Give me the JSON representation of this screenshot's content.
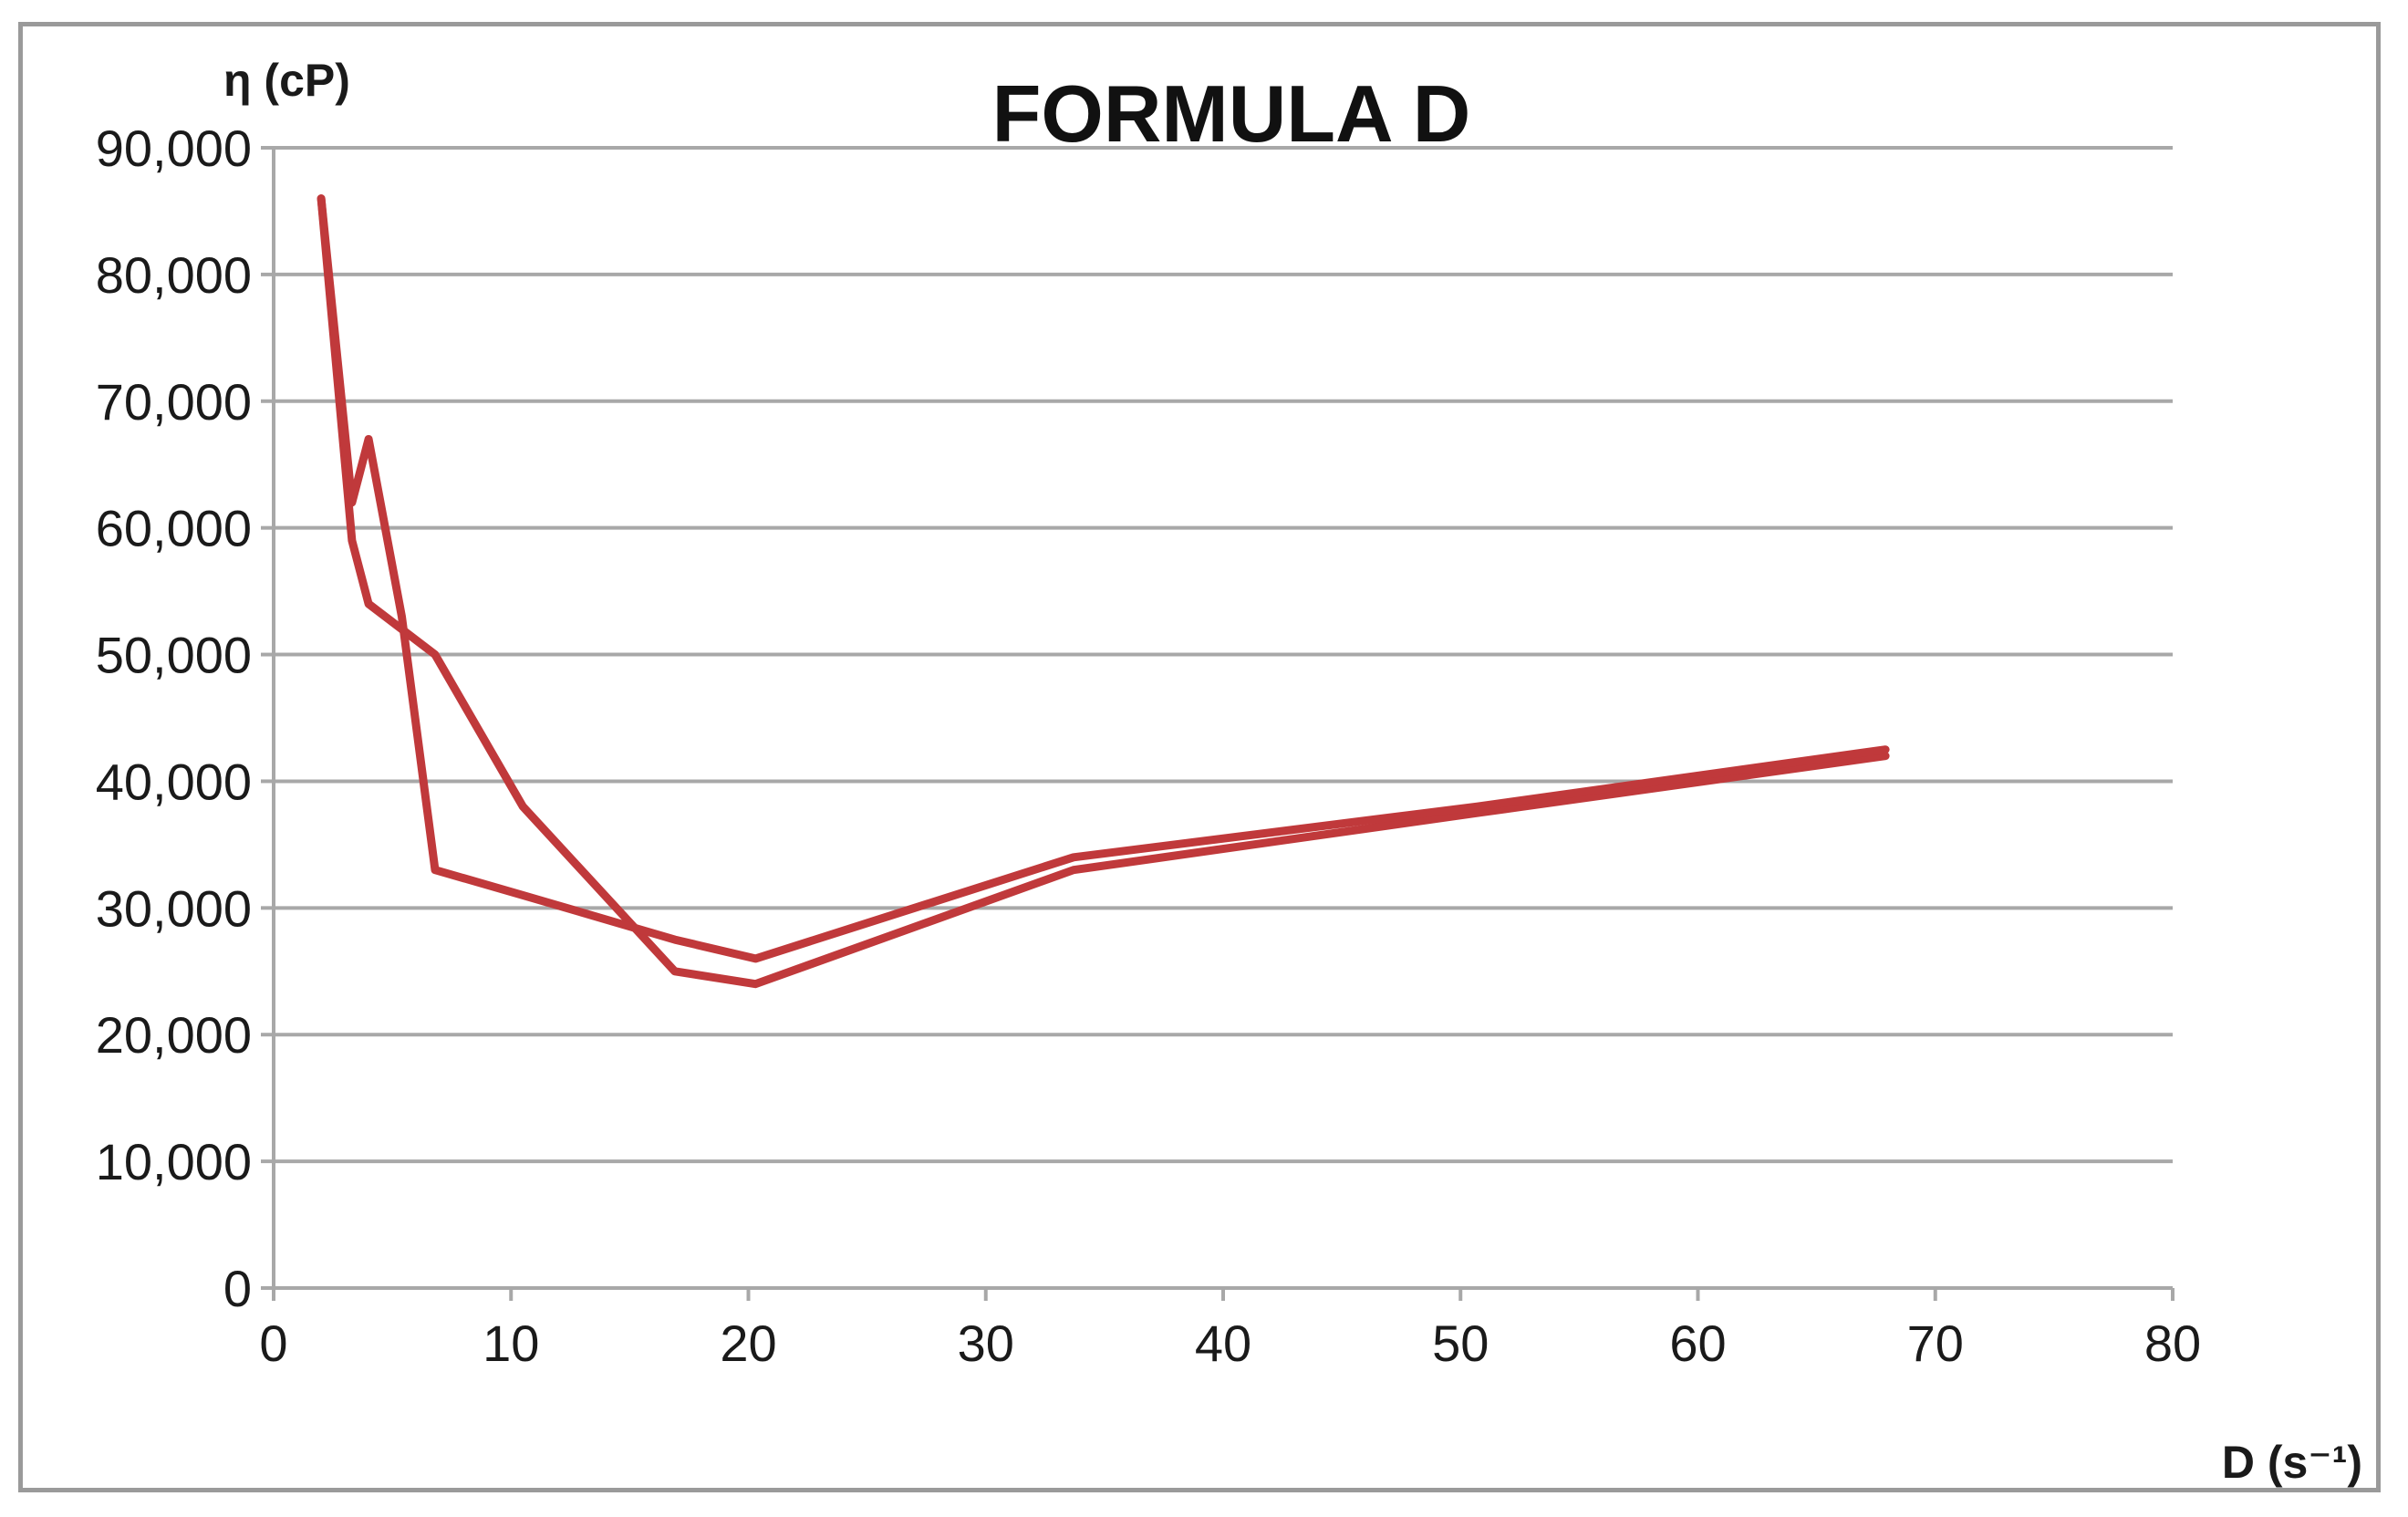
{
  "chart_data": {
    "type": "line",
    "title": "FORMULA D",
    "ylabel": "η (cP)",
    "xlabel": "D (s⁻¹)",
    "xlim": [
      0,
      80
    ],
    "ylim": [
      0,
      90000
    ],
    "x_ticks": [
      "0",
      "10",
      "20",
      "30",
      "40",
      "50",
      "60",
      "70",
      "80"
    ],
    "y_ticks": [
      "0",
      "10,000",
      "20,000",
      "30,000",
      "40,000",
      "50,000",
      "60,000",
      "70,000",
      "80,000",
      "90,000"
    ],
    "grid": true,
    "series": [
      {
        "x": [
          2,
          3.3,
          4,
          6.8,
          10.5,
          16.9,
          20.3,
          33.7,
          50.7,
          67.9
        ],
        "y": [
          86000,
          59000,
          54000,
          50000,
          38000,
          25000,
          24000,
          33000,
          37500,
          42000
        ]
      },
      {
        "x": [
          67.9,
          50.7,
          33.7,
          20.3,
          16.9,
          10.5,
          6.8,
          5.4,
          4,
          3.3,
          2
        ],
        "y": [
          42500,
          38000,
          34000,
          26000,
          27500,
          31000,
          33000,
          53000,
          67000,
          62000,
          86000
        ]
      }
    ],
    "colors": {
      "line": "#c0393b",
      "grid": "#a8a8a8",
      "axis": "#a8a8a8"
    }
  }
}
